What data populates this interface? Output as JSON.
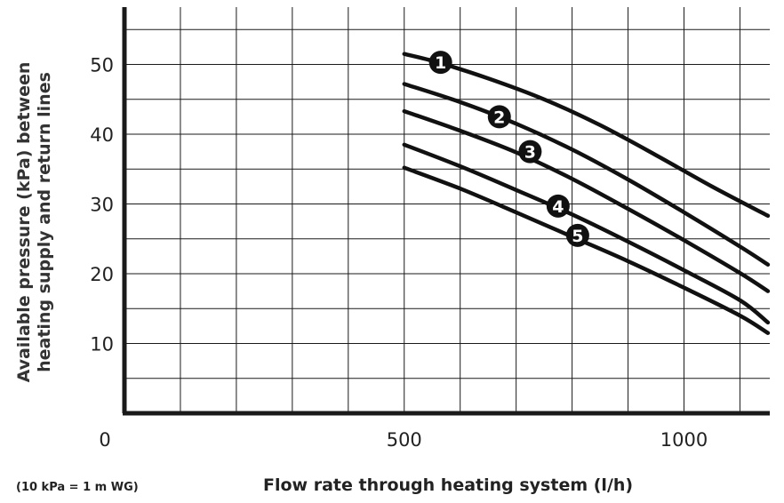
{
  "chart_data": {
    "type": "line",
    "title": "",
    "xlabel": "Flow rate through heating system (l/h)",
    "ylabel_lines": [
      "Available pressure (kPa) between",
      "heating supply and return lines"
    ],
    "note": "(10 kPa = 1 m WG)",
    "xlim": [
      0,
      1150
    ],
    "ylim": [
      0,
      57
    ],
    "x_ticks": [
      0,
      500,
      1000
    ],
    "y_ticks": [
      10,
      20,
      30,
      40,
      50
    ],
    "grid": true,
    "series": [
      {
        "name": "1",
        "x": [
          500,
          560,
          650,
          750,
          850,
          950,
          1050,
          1150
        ],
        "y": [
          51.5,
          50.3,
          48.0,
          45.0,
          41.3,
          37.0,
          32.5,
          28.3
        ],
        "label_x": 565,
        "label_y": 50.3
      },
      {
        "name": "2",
        "x": [
          500,
          600,
          700,
          800,
          900,
          1000,
          1100,
          1150
        ],
        "y": [
          47.2,
          44.6,
          41.5,
          37.8,
          33.5,
          28.8,
          23.9,
          21.3
        ],
        "label_x": 670,
        "label_y": 42.5
      },
      {
        "name": "3",
        "x": [
          500,
          600,
          700,
          800,
          900,
          1000,
          1100,
          1150
        ],
        "y": [
          43.3,
          40.5,
          37.4,
          33.6,
          29.3,
          24.8,
          20.1,
          17.5
        ],
        "label_x": 725,
        "label_y": 37.5
      },
      {
        "name": "4",
        "x": [
          500,
          600,
          700,
          800,
          900,
          1000,
          1100,
          1150
        ],
        "y": [
          38.5,
          35.4,
          32.0,
          28.5,
          24.6,
          20.5,
          16.2,
          13.0
        ],
        "label_x": 775,
        "label_y": 29.7
      },
      {
        "name": "5",
        "x": [
          500,
          600,
          700,
          800,
          900,
          1000,
          1100,
          1150
        ],
        "y": [
          35.2,
          32.2,
          28.8,
          25.3,
          21.8,
          18.0,
          14.0,
          11.5
        ],
        "label_x": 810,
        "label_y": 25.5
      }
    ]
  }
}
